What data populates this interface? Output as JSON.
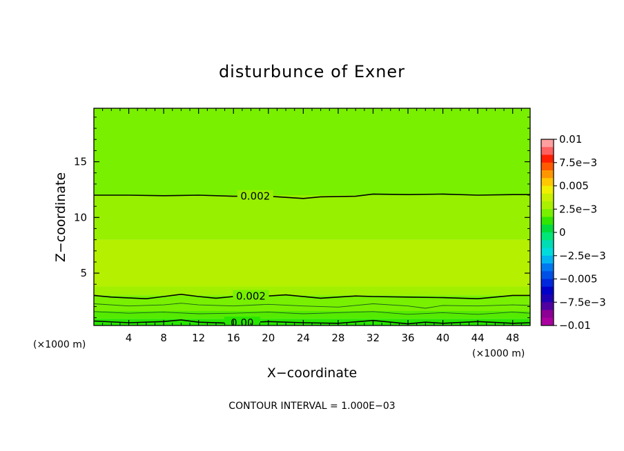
{
  "chart_data": {
    "type": "heatmap",
    "title": "disturbunce of Exner",
    "xlabel": "X−coordinate",
    "ylabel": "Z−coordinate",
    "x_unit_left": "(×1000 m)",
    "x_unit_right": "(×1000 m)",
    "footer": "CONTOUR INTERVAL = 1.000E−03",
    "xlim": [
      0,
      50
    ],
    "ylim": [
      0.3,
      19.8
    ],
    "x_ticks": [
      4,
      8,
      12,
      16,
      20,
      24,
      28,
      32,
      36,
      40,
      44,
      48
    ],
    "y_ticks": [
      5,
      10,
      15
    ],
    "colorbar": {
      "range": [
        -0.01,
        0.01
      ],
      "tick_values": [
        0.01,
        0.0075,
        0.005,
        0.0025,
        0,
        -0.0025,
        -0.005,
        -0.0075,
        -0.01
      ],
      "tick_labels": [
        "0.01",
        "7.5e−3",
        "0.005",
        "2.5e−3",
        "0",
        "−2.5e−3",
        "−0.005",
        "−7.5e−3",
        "−0.01"
      ],
      "colors": [
        "#ff9f9f",
        "#ff6060",
        "#ff1e00",
        "#ff5a00",
        "#ff9600",
        "#ffc800",
        "#f0f000",
        "#c8f000",
        "#aaf000",
        "#78f000",
        "#32e600",
        "#00dc3c",
        "#00e678",
        "#00dcb4",
        "#00dcdc",
        "#00b4f0",
        "#0078f0",
        "#0050e6",
        "#0028dc",
        "#0000c8",
        "#1e00b4",
        "#5000a0",
        "#8c0096",
        "#aa00a0"
      ]
    },
    "bands": [
      {
        "z_from": 12.0,
        "z_to": 19.8,
        "color": "#78f000"
      },
      {
        "z_from": 8.0,
        "z_to": 12.0,
        "color": "#96f000"
      },
      {
        "z_from": 3.8,
        "z_to": 8.0,
        "color": "#b4f000"
      },
      {
        "z_from": 3.0,
        "z_to": 3.8,
        "color": "#a0f000"
      },
      {
        "z_from": 1.6,
        "z_to": 3.0,
        "color": "#78f000"
      },
      {
        "z_from": 0.9,
        "z_to": 1.6,
        "color": "#55eb00"
      },
      {
        "z_from": 0.3,
        "z_to": 0.9,
        "color": "#28e600"
      }
    ],
    "contours": [
      {
        "level": 0.002,
        "label": "0.002",
        "label_x": 18.5,
        "points": [
          [
            0,
            12.0
          ],
          [
            4,
            12.0
          ],
          [
            8,
            11.95
          ],
          [
            12,
            12.0
          ],
          [
            16,
            11.9
          ],
          [
            20,
            11.9
          ],
          [
            22,
            11.8
          ],
          [
            24,
            11.7
          ],
          [
            26,
            11.85
          ],
          [
            30,
            11.9
          ],
          [
            32,
            12.1
          ],
          [
            36,
            12.05
          ],
          [
            40,
            12.1
          ],
          [
            44,
            12.0
          ],
          [
            48,
            12.05
          ],
          [
            50,
            12.05
          ]
        ]
      },
      {
        "level": 0.002,
        "label": "0.002",
        "label_x": 18,
        "points": [
          [
            0,
            3.0
          ],
          [
            2,
            2.85
          ],
          [
            6,
            2.7
          ],
          [
            8,
            2.9
          ],
          [
            10,
            3.1
          ],
          [
            12,
            2.9
          ],
          [
            14,
            2.75
          ],
          [
            16,
            2.9
          ],
          [
            20,
            2.95
          ],
          [
            22,
            3.05
          ],
          [
            26,
            2.75
          ],
          [
            30,
            2.95
          ],
          [
            32,
            2.9
          ],
          [
            36,
            2.85
          ],
          [
            40,
            2.8
          ],
          [
            44,
            2.7
          ],
          [
            48,
            3.0
          ],
          [
            50,
            3.0
          ]
        ]
      },
      {
        "level": 0.001,
        "label": "",
        "points": [
          [
            0,
            2.25
          ],
          [
            4,
            2.05
          ],
          [
            8,
            2.15
          ],
          [
            10,
            2.3
          ],
          [
            12,
            2.15
          ],
          [
            16,
            2.05
          ],
          [
            20,
            2.2
          ],
          [
            24,
            2.05
          ],
          [
            28,
            1.95
          ],
          [
            32,
            2.25
          ],
          [
            36,
            2.05
          ],
          [
            38,
            1.85
          ],
          [
            40,
            2.1
          ],
          [
            44,
            2.05
          ],
          [
            48,
            2.15
          ],
          [
            50,
            2.1
          ]
        ]
      },
      {
        "level": 0.0005,
        "label": "",
        "points": [
          [
            0,
            1.55
          ],
          [
            4,
            1.4
          ],
          [
            8,
            1.5
          ],
          [
            12,
            1.35
          ],
          [
            16,
            1.4
          ],
          [
            20,
            1.5
          ],
          [
            24,
            1.35
          ],
          [
            28,
            1.45
          ],
          [
            32,
            1.55
          ],
          [
            36,
            1.3
          ],
          [
            40,
            1.45
          ],
          [
            44,
            1.3
          ],
          [
            48,
            1.5
          ],
          [
            50,
            1.4
          ]
        ]
      },
      {
        "level": 0.0,
        "label": "0.00",
        "label_x": 17,
        "points": [
          [
            0,
            0.7
          ],
          [
            4,
            0.55
          ],
          [
            8,
            0.65
          ],
          [
            10,
            0.8
          ],
          [
            12,
            0.6
          ],
          [
            16,
            0.5
          ],
          [
            20,
            0.65
          ],
          [
            24,
            0.55
          ],
          [
            28,
            0.5
          ],
          [
            32,
            0.75
          ],
          [
            36,
            0.45
          ],
          [
            38,
            0.6
          ],
          [
            40,
            0.5
          ],
          [
            44,
            0.65
          ],
          [
            48,
            0.5
          ],
          [
            50,
            0.55
          ]
        ]
      }
    ]
  }
}
